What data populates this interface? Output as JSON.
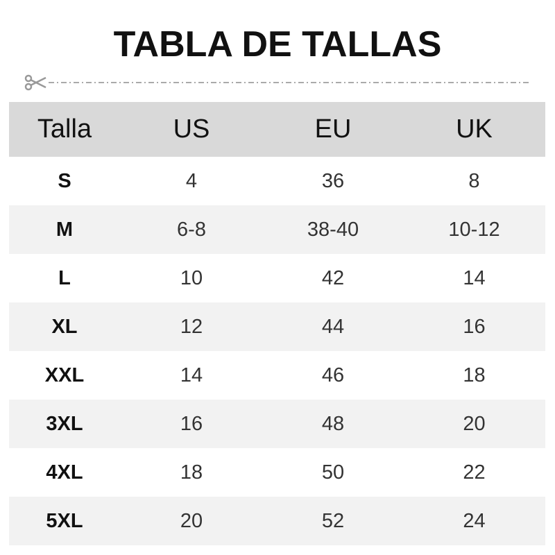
{
  "title": "TABLA DE TALLAS",
  "headers": [
    "Talla",
    "US",
    "EU",
    "UK"
  ],
  "rows": [
    [
      "S",
      "4",
      "36",
      "8"
    ],
    [
      "M",
      "6-8",
      "38-40",
      "10-12"
    ],
    [
      "L",
      "10",
      "42",
      "14"
    ],
    [
      "XL",
      "12",
      "44",
      "16"
    ],
    [
      "XXL",
      "14",
      "46",
      "18"
    ],
    [
      "3XL",
      "16",
      "48",
      "20"
    ],
    [
      "4XL",
      "18",
      "50",
      "22"
    ],
    [
      "5XL",
      "20",
      "52",
      "24"
    ]
  ],
  "colors": {
    "header_bg": "#d9d9d9",
    "alt_row_bg": "#f2f2f2",
    "line": "#aaaaaa"
  },
  "icons": {
    "cut": "scissors-icon"
  }
}
